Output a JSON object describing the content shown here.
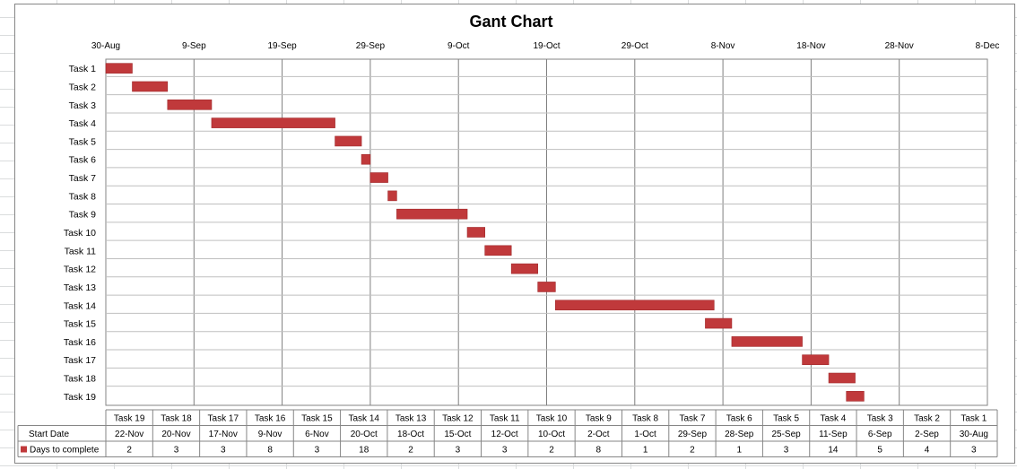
{
  "chart_data": {
    "type": "bar",
    "orientation": "horizontal-gantt",
    "title": "Gant Chart",
    "x_tick_labels": [
      "30-Aug",
      "9-Sep",
      "19-Sep",
      "29-Sep",
      "9-Oct",
      "19-Oct",
      "29-Oct",
      "8-Nov",
      "18-Nov",
      "28-Nov",
      "8-Dec"
    ],
    "x_range": [
      "30-Aug",
      "8-Dec"
    ],
    "x_tick_interval_days": 10,
    "grid": true,
    "bar_color": "#c0393b",
    "tasks": [
      {
        "name": "Task 1",
        "start": "30-Aug",
        "days": 3
      },
      {
        "name": "Task 2",
        "start": "2-Sep",
        "days": 4
      },
      {
        "name": "Task 3",
        "start": "6-Sep",
        "days": 5
      },
      {
        "name": "Task 4",
        "start": "11-Sep",
        "days": 14
      },
      {
        "name": "Task 5",
        "start": "25-Sep",
        "days": 3
      },
      {
        "name": "Task 6",
        "start": "28-Sep",
        "days": 1
      },
      {
        "name": "Task 7",
        "start": "29-Sep",
        "days": 2
      },
      {
        "name": "Task 8",
        "start": "1-Oct",
        "days": 1
      },
      {
        "name": "Task 9",
        "start": "2-Oct",
        "days": 8
      },
      {
        "name": "Task 10",
        "start": "10-Oct",
        "days": 2
      },
      {
        "name": "Task 11",
        "start": "12-Oct",
        "days": 3
      },
      {
        "name": "Task 12",
        "start": "15-Oct",
        "days": 3
      },
      {
        "name": "Task 13",
        "start": "18-Oct",
        "days": 2
      },
      {
        "name": "Task 14",
        "start": "20-Oct",
        "days": 18
      },
      {
        "name": "Task 15",
        "start": "6-Nov",
        "days": 3
      },
      {
        "name": "Task 16",
        "start": "9-Nov",
        "days": 8
      },
      {
        "name": "Task 17",
        "start": "17-Nov",
        "days": 3
      },
      {
        "name": "Task 18",
        "start": "20-Nov",
        "days": 3
      },
      {
        "name": "Task 19",
        "start": "22-Nov",
        "days": 2
      }
    ],
    "data_table": {
      "columns": [
        "Task 19",
        "Task 18",
        "Task 17",
        "Task 16",
        "Task 15",
        "Task 14",
        "Task 13",
        "Task 12",
        "Task 11",
        "Task 10",
        "Task 9",
        "Task 8",
        "Task 7",
        "Task 6",
        "Task 5",
        "Task 4",
        "Task 3",
        "Task 2",
        "Task 1"
      ],
      "rows": [
        {
          "label": "Start Date",
          "legend_key": false,
          "values": [
            "22-Nov",
            "20-Nov",
            "17-Nov",
            "9-Nov",
            "6-Nov",
            "20-Oct",
            "18-Oct",
            "15-Oct",
            "12-Oct",
            "10-Oct",
            "2-Oct",
            "1-Oct",
            "29-Sep",
            "28-Sep",
            "25-Sep",
            "11-Sep",
            "6-Sep",
            "2-Sep",
            "30-Aug"
          ]
        },
        {
          "label": "Days to complete",
          "legend_key": true,
          "values": [
            "2",
            "3",
            "3",
            "8",
            "3",
            "18",
            "2",
            "3",
            "3",
            "2",
            "8",
            "1",
            "2",
            "1",
            "3",
            "14",
            "5",
            "4",
            "3"
          ]
        }
      ]
    }
  }
}
